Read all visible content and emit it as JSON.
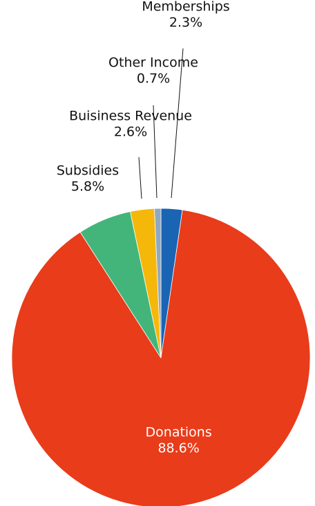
{
  "chart_data": {
    "type": "pie",
    "start_angle_deg": 0,
    "direction": "clockwise",
    "slices": [
      {
        "name": "Memberships",
        "value": 2.3,
        "label": "2.3%",
        "color": "#1a64b4",
        "label_position": "outside"
      },
      {
        "name": "Donations",
        "value": 88.6,
        "label": "88.6%",
        "color": "#e83c1a",
        "label_position": "inside"
      },
      {
        "name": "Subsidies",
        "value": 5.8,
        "label": "5.8%",
        "color": "#43b57a",
        "label_position": "outside"
      },
      {
        "name": "Buisiness Revenue",
        "value": 2.6,
        "label": "2.6%",
        "color": "#f5b80a",
        "label_position": "outside"
      },
      {
        "name": "Other Income",
        "value": 0.7,
        "label": "0.7%",
        "color": "#8fa9c3",
        "label_position": "outside"
      }
    ]
  }
}
